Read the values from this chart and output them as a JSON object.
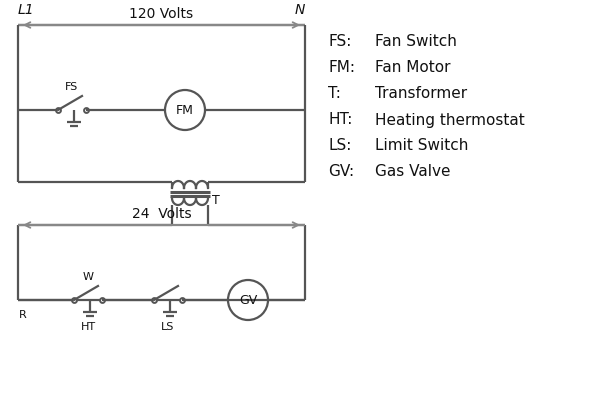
{
  "background_color": "#ffffff",
  "line_color": "#555555",
  "text_color": "#111111",
  "arrow_color": "#888888",
  "legend_items": [
    [
      "FS:",
      "Fan Switch"
    ],
    [
      "FM:",
      "Fan Motor"
    ],
    [
      "T:",
      "Transformer"
    ],
    [
      "HT:",
      "Heating thermostat"
    ],
    [
      "LS:",
      "Limit Switch"
    ],
    [
      "GV:",
      "Gas Valve"
    ]
  ],
  "volts120_label": "120 Volts",
  "volts24_label": "24  Volts",
  "L1_label": "L1",
  "N_label": "N",
  "T_label": "T",
  "FS_label": "FS",
  "FM_label": "FM",
  "GV_label": "GV",
  "R_label": "R",
  "W_label": "W",
  "HT_label": "HT",
  "LS_label": "LS"
}
